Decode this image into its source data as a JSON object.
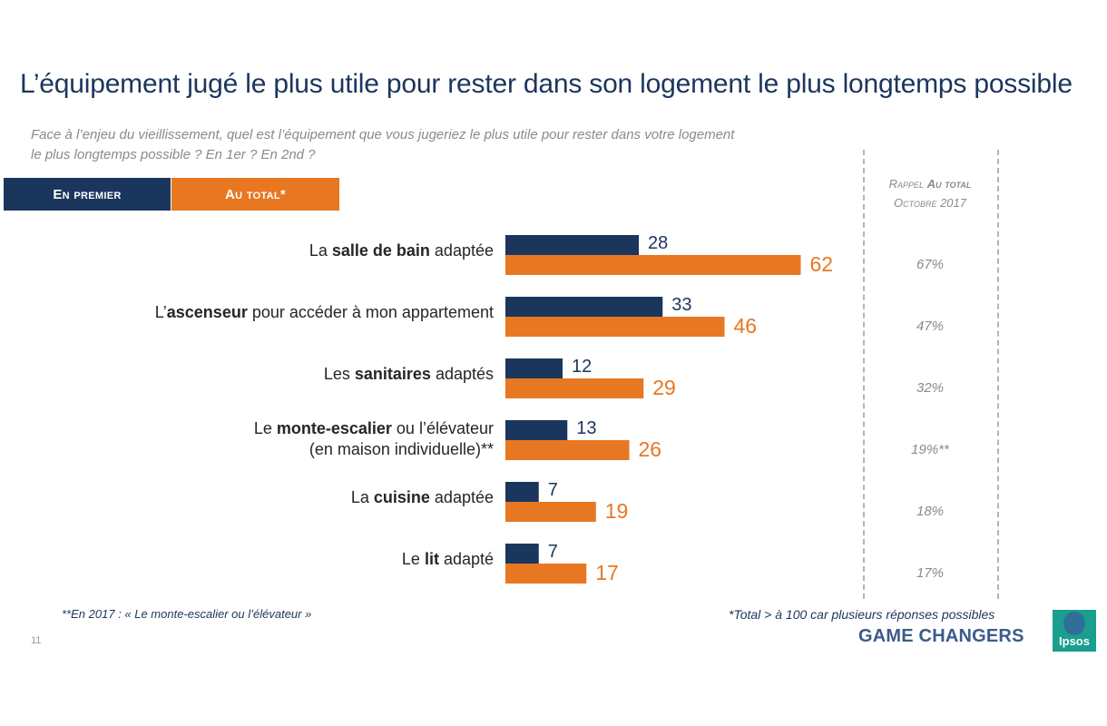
{
  "title": "L’équipement jugé le plus utile pour rester dans son logement le plus longtemps possible",
  "question_line1": "Face à l’enjeu du vieillissement, quel est l’équipement que vous jugeriez le plus utile pour rester dans votre logement",
  "question_line2": "le plus longtemps possible ? En 1er ? En 2nd ?",
  "legend": {
    "first": "En premier",
    "total": "Au total*"
  },
  "rappel": {
    "line1_a": "Rappel ",
    "line1_b": "Au total",
    "line2": "Octobre 2017",
    "values": [
      "67%",
      "47%",
      "32%",
      "19%**",
      "18%",
      "17%"
    ]
  },
  "colors": {
    "navy": "#1b365d",
    "orange": "#e87722",
    "teal": "#1a9e8f"
  },
  "chart_data": {
    "type": "bar",
    "orientation": "horizontal",
    "categories": [
      "La salle de bain adaptée",
      "L’ascenseur pour accéder à mon appartement",
      "Les sanitaires adaptés",
      "Le monte-escalier ou l’élévateur (en maison individuelle)**",
      "La cuisine adaptée",
      "Le lit adapté"
    ],
    "category_parts": [
      {
        "pre": "La ",
        "bold": "salle de bain",
        "post": " adaptée",
        "line2": ""
      },
      {
        "pre": "L’",
        "bold": "ascenseur",
        "post": " pour accéder à mon appartement",
        "line2": ""
      },
      {
        "pre": "Les ",
        "bold": "sanitaires",
        "post": " adaptés",
        "line2": ""
      },
      {
        "pre": "Le ",
        "bold": "monte-escalier",
        "post": " ou l’élévateur",
        "line2": "(en maison individuelle)**"
      },
      {
        "pre": "La ",
        "bold": "cuisine",
        "post": " adaptée",
        "line2": ""
      },
      {
        "pre": "Le ",
        "bold": "lit",
        "post": " adapté",
        "line2": ""
      }
    ],
    "series": [
      {
        "name": "En premier",
        "values": [
          28,
          33,
          12,
          13,
          7,
          7
        ]
      },
      {
        "name": "Au total*",
        "values": [
          62,
          46,
          29,
          26,
          19,
          17
        ]
      }
    ],
    "xlim": [
      0,
      100
    ],
    "grid": false,
    "legend": "top-left"
  },
  "footnotes": {
    "left": "**En 2017 : « Le monte-escalier ou l’élévateur »",
    "right": "*Total > à 100 car plusieurs réponses possibles"
  },
  "page_number": "11",
  "brand": {
    "tagline": "GAME CHANGERS",
    "logo_text": "Ipsos"
  }
}
